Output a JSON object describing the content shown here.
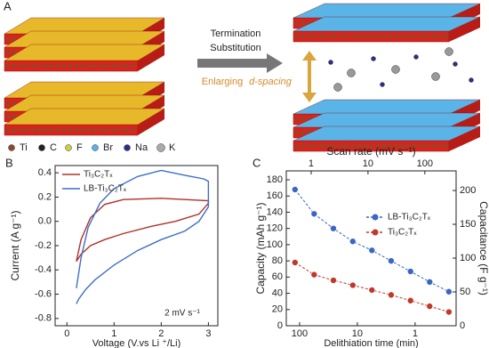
{
  "diagram": {
    "panel_label": "A",
    "arrow_label": [
      "Termination",
      "Substitution"
    ],
    "spacing_label": [
      "Enlarging",
      "d-spacing"
    ],
    "legend": [
      "Ti",
      "C",
      "F",
      "Br",
      "Na",
      "K"
    ]
  },
  "chart_data": [
    {
      "type": "line",
      "panel_label": "B",
      "xlabel": "Voltage (V.vs Li ⁺/Li)",
      "ylabel": "Current (A g⁻¹)",
      "annotation": "2 mV s⁻¹",
      "xlim": [
        -0.25,
        3.2
      ],
      "xticks": [
        0,
        1,
        2,
        3
      ],
      "ylim": [
        -0.86,
        0.46
      ],
      "yticks": [
        0.4,
        0.2,
        {
          "value": 0,
          "label": "0.0"
        },
        -0.2,
        -0.4,
        -0.6,
        -0.8
      ],
      "legend": "upper left",
      "series": [
        {
          "name": "Ti₃C₂Tₓ",
          "color": "#b0302a",
          "x": [
            0.2,
            0.3,
            0.5,
            0.8,
            1.2,
            2.0,
            2.5,
            3.0,
            3.0,
            2.8,
            2.3,
            1.8,
            1.2,
            0.8,
            0.5,
            0.3,
            0.2
          ],
          "values": [
            -0.33,
            -0.15,
            0.03,
            0.14,
            0.18,
            0.19,
            0.18,
            0.17,
            0.15,
            0.06,
            0.0,
            -0.04,
            -0.1,
            -0.15,
            -0.2,
            -0.27,
            -0.33
          ]
        },
        {
          "name": "LB-Ti₃C₂Tₓ",
          "color": "#3c6fc8",
          "x": [
            0.2,
            0.3,
            0.45,
            0.7,
            1.0,
            1.5,
            2.0,
            2.5,
            2.9,
            3.0,
            3.0,
            2.8,
            2.5,
            2.0,
            1.5,
            1.0,
            0.6,
            0.4,
            0.25,
            0.2
          ],
          "values": [
            -0.55,
            -0.3,
            -0.05,
            0.15,
            0.27,
            0.37,
            0.42,
            0.38,
            0.35,
            0.33,
            0.12,
            0.0,
            -0.08,
            -0.15,
            -0.24,
            -0.36,
            -0.48,
            -0.56,
            -0.64,
            -0.68
          ]
        }
      ]
    },
    {
      "type": "scatter",
      "panel_label": "C",
      "xlabel": "Delithiation time (min)",
      "x2label": "Scan rate (mV s⁻¹)",
      "ylabel": "Capacity (mAh g⁻¹)",
      "y2label": "Capacitance (F g⁻¹)",
      "xlog": true,
      "xlim": [
        170,
        0.195
      ],
      "xticks": [
        100,
        10,
        1
      ],
      "x2lim": [
        0.365,
        355
      ],
      "x2ticks": [
        1,
        10,
        100
      ],
      "ylim": [
        0,
        191
      ],
      "yticks": [
        0,
        20,
        40,
        60,
        80,
        100,
        120,
        140,
        160,
        180
      ],
      "y2lim": [
        0,
        229
      ],
      "y2ticks": [
        0,
        50,
        100,
        150,
        200
      ],
      "legend": "center right",
      "series": [
        {
          "name": "LB-Ti₃C₂Tₓ",
          "color": "#3a66c4",
          "x": [
            120,
            56,
            26,
            12,
            5.6,
            2.6,
            1.2,
            0.56,
            0.26
          ],
          "values": [
            168,
            138,
            120,
            104,
            93,
            80,
            67,
            54,
            42
          ]
        },
        {
          "name": "Ti₃C₂Tₓ",
          "color": "#c0392b",
          "x": [
            120,
            56,
            26,
            12,
            5.6,
            2.6,
            1.2,
            0.56,
            0.26
          ],
          "values": [
            78,
            63,
            56,
            50,
            44,
            38,
            31,
            24,
            17
          ]
        }
      ]
    }
  ]
}
